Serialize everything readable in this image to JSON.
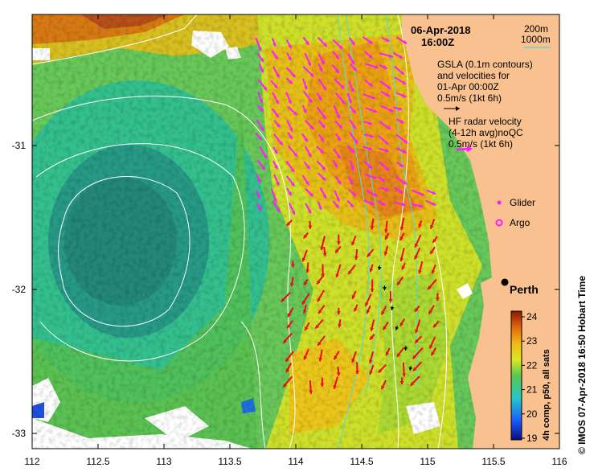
{
  "map": {
    "date": "06-Apr-2018",
    "time": "16:00Z",
    "contour_legend": {
      "deep": "200m",
      "shallow": "1000m"
    },
    "gsla_lines": [
      "GSLA (0.1m contours)",
      "and velocities for",
      "01-Apr 00:00Z",
      "0.5m/s (1kt 6h)"
    ],
    "hf_lines": [
      "HF radar velocity",
      "(4-12h avg)noQC",
      "0.5m/s (1kt 6h)"
    ],
    "glider_label": "Glider",
    "argo_label": "Argo",
    "city": "Perth",
    "colorbar_title": "4h comp, p50, all sats",
    "colorbar_ticks": [
      "24",
      "23",
      "22",
      "21",
      "20",
      "19"
    ],
    "credit": "© IMOS 07-Apr-2018 16:50 Hobart Time",
    "x_ticks": [
      "112",
      "112.5",
      "113",
      "113.5",
      "114",
      "114.5",
      "115",
      "115.5",
      "116"
    ],
    "y_ticks": [
      "-31",
      "-32",
      "-33"
    ],
    "colors": {
      "land": "#f9c18f",
      "contour": "#5fd8c8",
      "hf_arrow": "#ff1aff",
      "model_arrow": "#ee0a0a",
      "gsla": "#ffffff"
    }
  }
}
